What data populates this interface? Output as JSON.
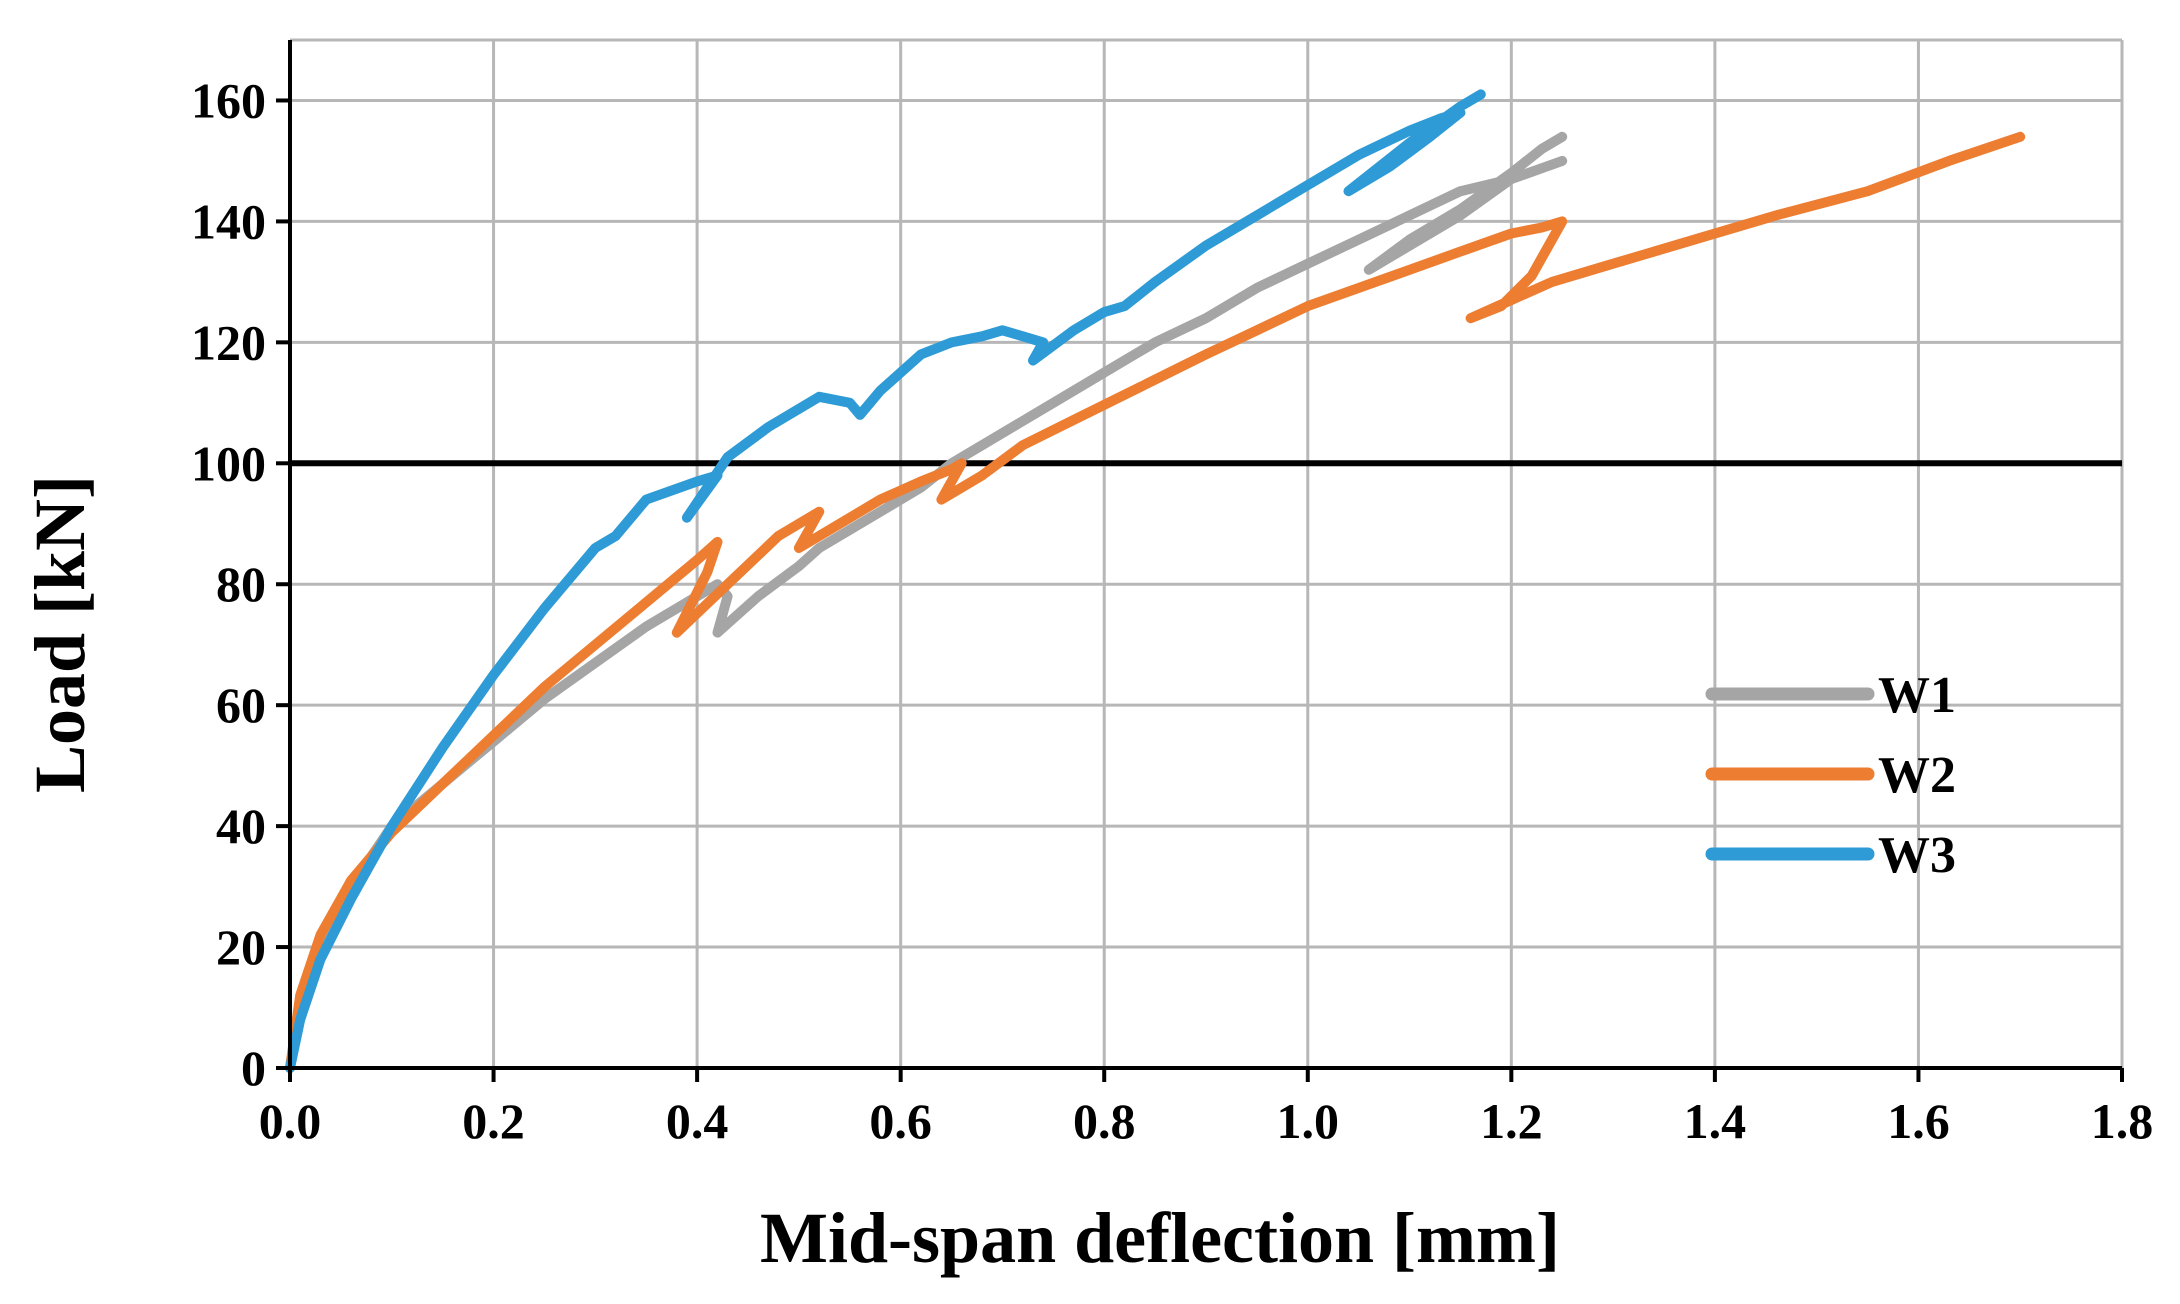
{
  "chart_data": {
    "type": "line",
    "title": "",
    "xlabel": "Mid-span deflection [mm]",
    "ylabel": "Load [kN]",
    "xlim": [
      0,
      1.8
    ],
    "ylim": [
      0,
      170
    ],
    "x_ticks": [
      0.0,
      0.2,
      0.4,
      0.6,
      0.8,
      1.0,
      1.2,
      1.4,
      1.6,
      1.8
    ],
    "x_tick_labels": [
      "0.0",
      "0.2",
      "0.4",
      "0.6",
      "0.8",
      "1.0",
      "1.2",
      "1.4",
      "1.6",
      "1.8"
    ],
    "y_ticks": [
      0,
      20,
      40,
      60,
      80,
      100,
      120,
      140,
      160
    ],
    "y_tick_labels": [
      "0",
      "20",
      "40",
      "60",
      "80",
      "100",
      "120",
      "140",
      "160"
    ],
    "grid": true,
    "legend_position": "right",
    "reference_line": {
      "y": 100,
      "color": "#000000"
    },
    "series": [
      {
        "name": "W1",
        "color": "#a5a5a5",
        "x": [
          0.0,
          0.01,
          0.03,
          0.06,
          0.1,
          0.15,
          0.2,
          0.25,
          0.3,
          0.35,
          0.4,
          0.42,
          0.43,
          0.42,
          0.46,
          0.5,
          0.52,
          0.55,
          0.58,
          0.62,
          0.65,
          0.68,
          0.72,
          0.76,
          0.8,
          0.85,
          0.9,
          0.95,
          1.0,
          1.05,
          1.1,
          1.15,
          1.2,
          1.25,
          1.2,
          1.15,
          1.1,
          1.06,
          1.1,
          1.15,
          1.2,
          1.23,
          1.25
        ],
        "y": [
          0,
          10,
          20,
          30,
          40,
          47,
          54,
          61,
          67,
          73,
          78,
          80,
          78,
          72,
          78,
          83,
          86,
          89,
          92,
          96,
          100,
          103,
          107,
          111,
          115,
          120,
          124,
          129,
          133,
          137,
          141,
          145,
          147,
          150,
          147,
          141,
          136,
          132,
          137,
          142,
          148,
          152,
          154
        ]
      },
      {
        "name": "W2",
        "color": "#ed7d31",
        "x": [
          0.0,
          0.01,
          0.03,
          0.06,
          0.1,
          0.15,
          0.2,
          0.25,
          0.3,
          0.35,
          0.4,
          0.42,
          0.41,
          0.38,
          0.43,
          0.48,
          0.52,
          0.5,
          0.54,
          0.58,
          0.62,
          0.65,
          0.66,
          0.64,
          0.68,
          0.72,
          0.78,
          0.84,
          0.9,
          0.95,
          1.0,
          1.05,
          1.1,
          1.15,
          1.2,
          1.23,
          1.25,
          1.22,
          1.19,
          1.16,
          1.2,
          1.24,
          1.3,
          1.38,
          1.46,
          1.55,
          1.63,
          1.7
        ],
        "y": [
          0,
          12,
          22,
          31,
          39,
          47,
          55,
          63,
          70,
          77,
          84,
          87,
          82,
          72,
          80,
          88,
          92,
          86,
          90,
          94,
          97,
          99,
          100,
          94,
          98,
          103,
          108,
          113,
          118,
          122,
          126,
          129,
          132,
          135,
          138,
          139,
          140,
          131,
          126,
          124,
          127,
          130,
          133,
          137,
          141,
          145,
          150,
          154
        ]
      },
      {
        "name": "W3",
        "color": "#2e9bd6",
        "x": [
          0.0,
          0.01,
          0.03,
          0.06,
          0.1,
          0.15,
          0.2,
          0.25,
          0.3,
          0.32,
          0.35,
          0.4,
          0.42,
          0.39,
          0.43,
          0.47,
          0.52,
          0.55,
          0.56,
          0.58,
          0.62,
          0.65,
          0.68,
          0.7,
          0.72,
          0.74,
          0.73,
          0.77,
          0.8,
          0.82,
          0.85,
          0.9,
          0.95,
          1.0,
          1.05,
          1.1,
          1.13,
          1.15,
          1.12,
          1.08,
          1.04,
          1.1,
          1.15,
          1.17
        ],
        "y": [
          0,
          8,
          18,
          28,
          40,
          53,
          65,
          76,
          86,
          88,
          94,
          97,
          98,
          91,
          101,
          106,
          111,
          110,
          108,
          112,
          118,
          120,
          121,
          122,
          121,
          120,
          117,
          122,
          125,
          126,
          130,
          136,
          141,
          146,
          151,
          155,
          157,
          158,
          154,
          149,
          145,
          153,
          159,
          161
        ]
      }
    ]
  }
}
